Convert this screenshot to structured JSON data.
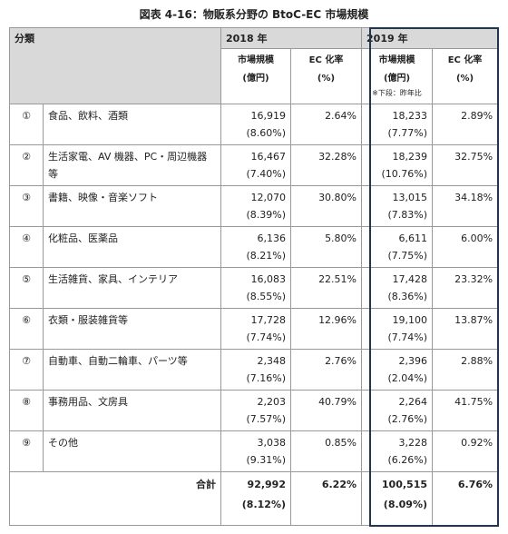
{
  "title": "図表 4-16：物販系分野の BtoC-EC 市場規模",
  "header": {
    "category": "分類",
    "year_2018": "2018 年",
    "year_2019": "2019 年",
    "columns": [
      {
        "label": "市場規模",
        "unit": "(億円)"
      },
      {
        "label": "EC 化率",
        "unit": "(%)"
      },
      {
        "label": "市場規模",
        "unit": "(億円)",
        "note": "※下段：昨年比"
      },
      {
        "label": "EC 化率",
        "unit": "(%)"
      }
    ]
  },
  "rows": [
    {
      "no": "①",
      "name": "食品、飲料、酒類",
      "size_2018": "16,919",
      "growth_2018": "(8.60%)",
      "rate_2018": "2.64%",
      "size_2019": "18,233",
      "growth_2019": "(7.77%)",
      "rate_2019": "2.89%"
    },
    {
      "no": "②",
      "name": "生活家電、AV 機器、PC・周辺機器等",
      "size_2018": "16,467",
      "growth_2018": "(7.40%)",
      "rate_2018": "32.28%",
      "size_2019": "18,239",
      "growth_2019": "(10.76%)",
      "rate_2019": "32.75%"
    },
    {
      "no": "③",
      "name": "書籍、映像・音楽ソフト",
      "size_2018": "12,070",
      "growth_2018": "(8.39%)",
      "rate_2018": "30.80%",
      "size_2019": "13,015",
      "growth_2019": "(7.83%)",
      "rate_2019": "34.18%"
    },
    {
      "no": "④",
      "name": "化粧品、医薬品",
      "size_2018": "6,136",
      "growth_2018": "(8.21%)",
      "rate_2018": "5.80%",
      "size_2019": "6,611",
      "growth_2019": "(7.75%)",
      "rate_2019": "6.00%"
    },
    {
      "no": "⑤",
      "name": "生活雑貨、家具、インテリア",
      "size_2018": "16,083",
      "growth_2018": "(8.55%)",
      "rate_2018": "22.51%",
      "size_2019": "17,428",
      "growth_2019": "(8.36%)",
      "rate_2019": "23.32%"
    },
    {
      "no": "⑥",
      "name": "衣類・服装雑貨等",
      "size_2018": "17,728",
      "growth_2018": "(7.74%)",
      "rate_2018": "12.96%",
      "size_2019": "19,100",
      "growth_2019": "(7.74%)",
      "rate_2019": "13.87%"
    },
    {
      "no": "⑦",
      "name": "自動車、自動二輪車、パーツ等",
      "size_2018": "2,348",
      "growth_2018": "(7.16%)",
      "rate_2018": "2.76%",
      "size_2019": "2,396",
      "growth_2019": "(2.04%)",
      "rate_2019": "2.88%"
    },
    {
      "no": "⑧",
      "name": "事務用品、文房具",
      "size_2018": "2,203",
      "growth_2018": "(7.57%)",
      "rate_2018": "40.79%",
      "size_2019": "2,264",
      "growth_2019": "(2.76%)",
      "rate_2019": "41.75%"
    },
    {
      "no": "⑨",
      "name": "その他",
      "size_2018": "3,038",
      "growth_2018": "(9.31%)",
      "rate_2018": "0.85%",
      "size_2019": "3,228",
      "growth_2019": "(6.26%)",
      "rate_2019": "0.92%"
    }
  ],
  "total": {
    "label": "合計",
    "size_2018": "92,992",
    "growth_2018": "(8.12%)",
    "rate_2018": "6.22%",
    "size_2019": "100,515",
    "growth_2019": "(8.09%)",
    "rate_2019": "6.76%"
  }
}
